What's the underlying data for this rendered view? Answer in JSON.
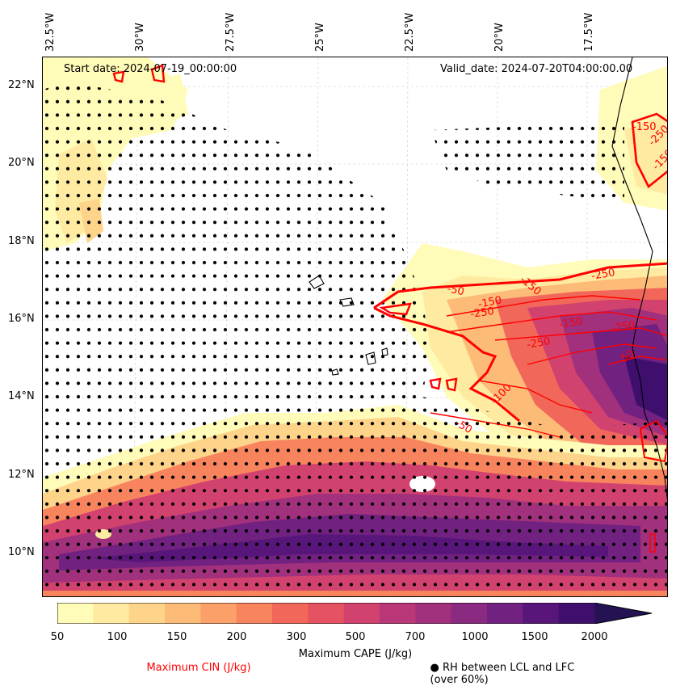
{
  "header": {
    "start_date": "Start date: 2024-07-19_00:00:00",
    "valid_date": "Valid_date: 2024-07-20T04:00:00.00"
  },
  "axes": {
    "lon_ticks": [
      "32.5°W",
      "30°W",
      "27.5°W",
      "25°W",
      "22.5°W",
      "20°W",
      "17.5°W"
    ],
    "lat_ticks": [
      "22°N",
      "20°N",
      "18°N",
      "16°N",
      "14°N",
      "12°N",
      "10°N"
    ]
  },
  "colorbar": {
    "label": "Maximum CAPE (J/kg)",
    "ticks": [
      "50",
      "100",
      "150",
      "200",
      "300",
      "500",
      "700",
      "1000",
      "1500",
      "2000"
    ],
    "colors": [
      "#fffbb8",
      "#feeaa0",
      "#fed38a",
      "#fdbb78",
      "#fca06a",
      "#f8845e",
      "#f1685a",
      "#e55262",
      "#d2426f",
      "#ba3878",
      "#a1307d",
      "#8a2a80",
      "#712180",
      "#58157a",
      "#3f0f6e",
      "#241252"
    ]
  },
  "legend": {
    "cin_label": "Maximum CIN (J/kg)",
    "rh_label": "● RH between LCL and LFC (over 60%)"
  },
  "contour_labels": [
    "-50",
    "-150",
    "-250",
    "-150",
    "-250",
    "-150",
    "-250",
    "-250",
    "-100",
    "-50",
    "-150",
    "-250",
    "-150",
    "-50"
  ]
}
